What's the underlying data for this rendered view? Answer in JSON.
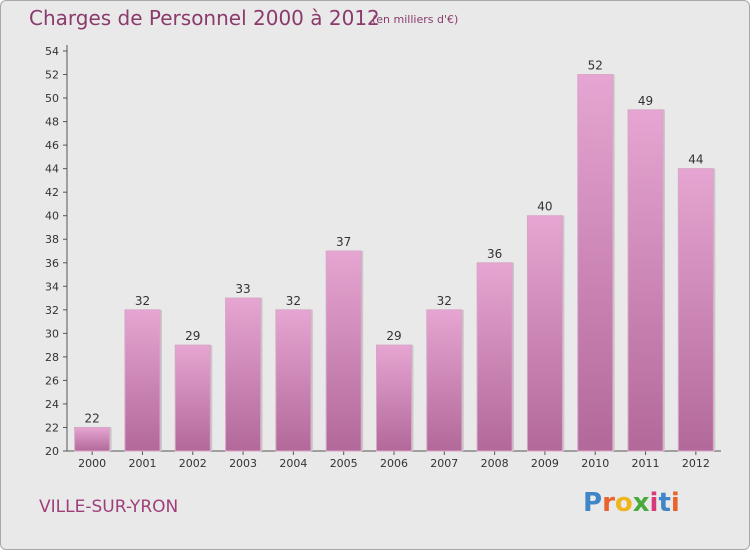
{
  "title": "Charges de Personnel 2000 à 2012",
  "subtitle": "(en milliers d'€)",
  "commune": "VILLE-SUR-YRON",
  "logo": {
    "letters": [
      "P",
      "r",
      "o",
      "x",
      "i",
      "t",
      "i"
    ],
    "colors": [
      "#3f86c8",
      "#e9642c",
      "#f0b41c",
      "#4aaa3b",
      "#d63a7a",
      "#3f86c8",
      "#e9642c"
    ]
  },
  "colors": {
    "bar_top": "#e6a5d2",
    "bar_bottom": "#b2699a",
    "text": "#8a3b6c"
  },
  "chart_data": {
    "type": "bar",
    "categories": [
      "2000",
      "2001",
      "2002",
      "2003",
      "2004",
      "2005",
      "2006",
      "2007",
      "2008",
      "2009",
      "2010",
      "2011",
      "2012"
    ],
    "values": [
      22,
      32,
      29,
      33,
      32,
      37,
      29,
      32,
      36,
      40,
      52,
      49,
      44
    ],
    "ylim": [
      20,
      54
    ],
    "yticks": [
      20,
      22,
      24,
      26,
      28,
      30,
      32,
      34,
      36,
      38,
      40,
      42,
      44,
      46,
      48,
      50,
      52,
      54
    ],
    "grid": false
  }
}
